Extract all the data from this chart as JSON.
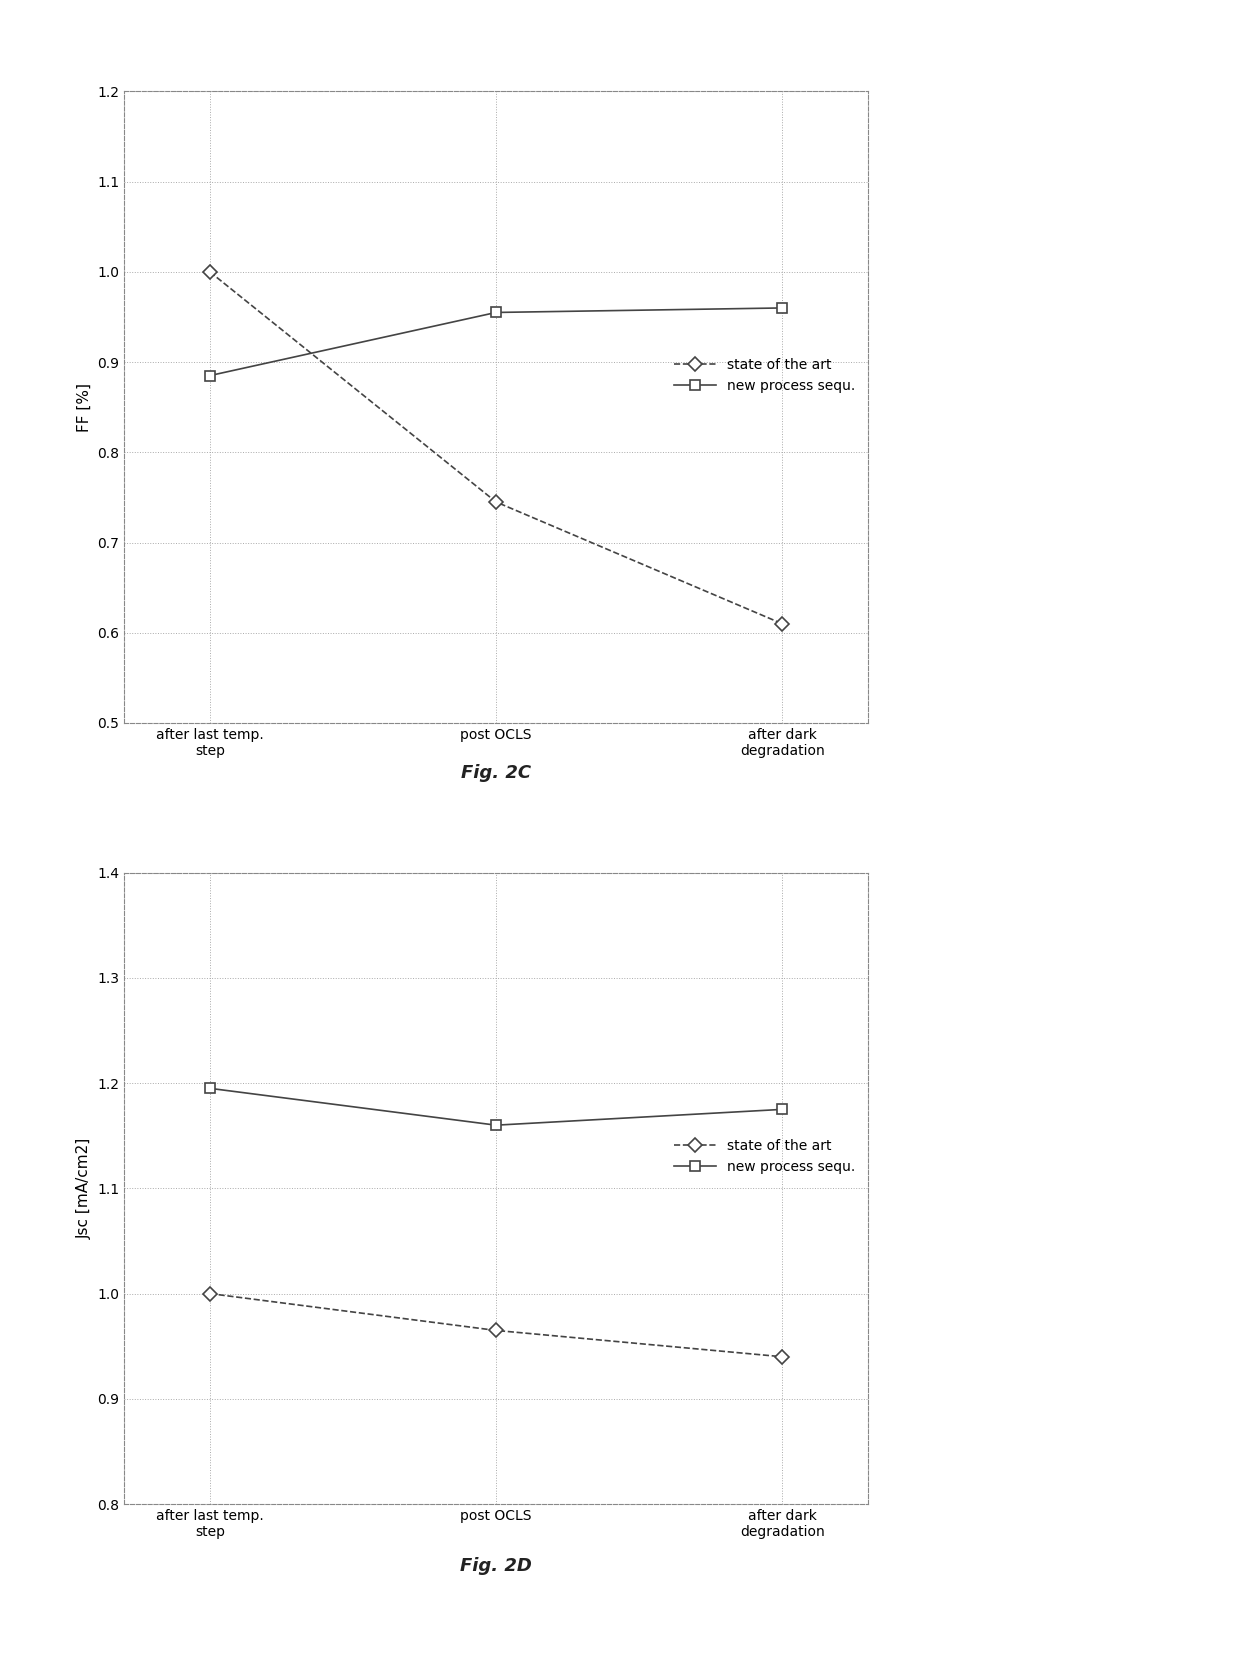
{
  "fig2c": {
    "title": "Fig. 2C",
    "ylabel": "FF [%]",
    "ylim": [
      0.5,
      1.2
    ],
    "yticks": [
      0.5,
      0.6,
      0.7,
      0.8,
      0.9,
      1.0,
      1.1,
      1.2
    ],
    "xtick_labels": [
      "after last temp.\nstep",
      "post OCLS",
      "after dark\ndegradation"
    ],
    "series": [
      {
        "label": "state of the art",
        "values": [
          1.0,
          0.745,
          0.61
        ],
        "linestyle": "--",
        "marker": "D",
        "color": "#444444"
      },
      {
        "label": "new process sequ.",
        "values": [
          0.885,
          0.955,
          0.96
        ],
        "linestyle": "-",
        "marker": "s",
        "color": "#444444"
      }
    ]
  },
  "fig2d": {
    "title": "Fig. 2D",
    "ylabel": "Jsc [mA/cm2]",
    "ylim": [
      0.8,
      1.4
    ],
    "yticks": [
      0.8,
      0.9,
      1.0,
      1.1,
      1.2,
      1.3,
      1.4
    ],
    "xtick_labels": [
      "after last temp.\nstep",
      "post OCLS",
      "after dark\ndegradation"
    ],
    "series": [
      {
        "label": "state of the art",
        "values": [
          1.0,
          0.965,
          0.94
        ],
        "linestyle": "--",
        "marker": "D",
        "color": "#444444"
      },
      {
        "label": "new process sequ.",
        "values": [
          1.195,
          1.16,
          1.175
        ],
        "linestyle": "-",
        "marker": "s",
        "color": "#444444"
      }
    ]
  },
  "background_color": "#ffffff",
  "plot_bg_color": "#ffffff",
  "grid_color": "#aaaaaa",
  "grid_linestyle": ":",
  "legend_fontsize": 10,
  "tick_fontsize": 10,
  "label_fontsize": 11,
  "title_fontsize": 13,
  "marker_size": 7,
  "line_width": 1.2,
  "outer_border_color": "#aaaaaa",
  "outer_border_linestyle": "--"
}
